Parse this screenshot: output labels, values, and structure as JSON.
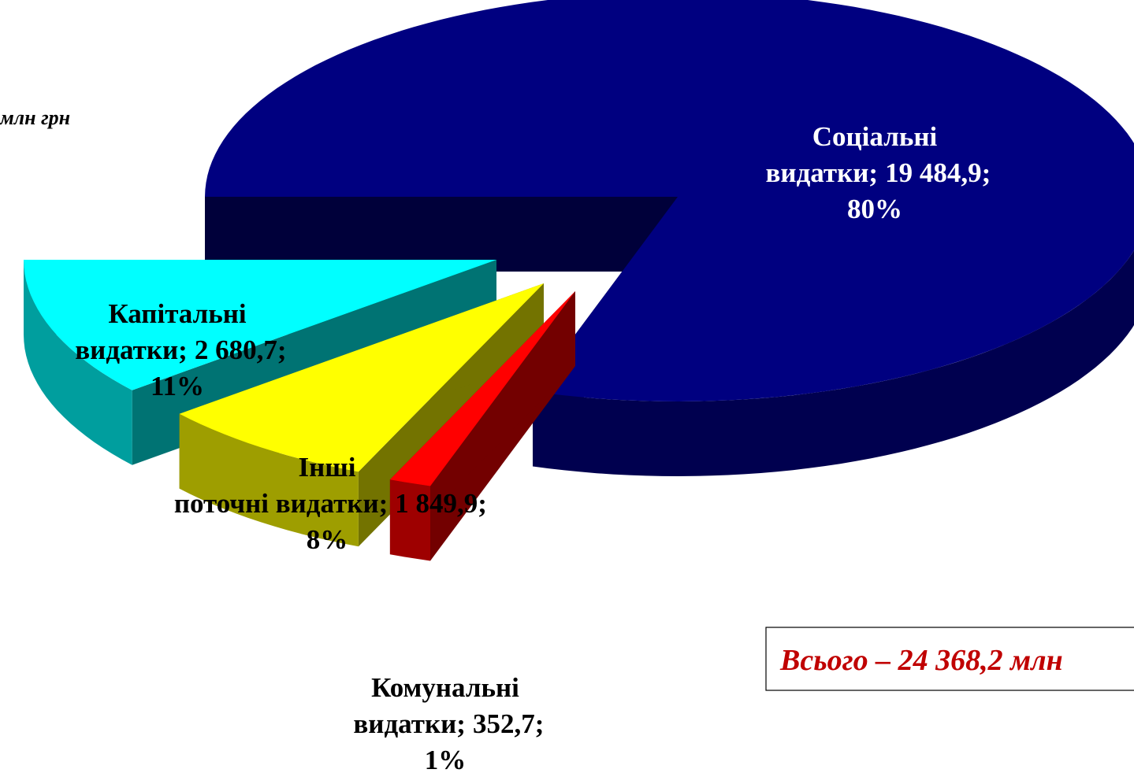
{
  "chart_data": {
    "type": "pie3d",
    "unit_label": "млн грн",
    "total_label": "Всього – 24 368,2 млн",
    "categories": [
      "Соціальні видатки",
      "Капітальні видатки",
      "Інші поточні видатки",
      "Комунальні видатки"
    ],
    "values": [
      19484.9,
      2680.7,
      1849.9,
      352.7
    ],
    "value_labels": [
      "19 484,9",
      "2 680,7",
      "1 849,9",
      "352,7"
    ],
    "percent_labels": [
      "80%",
      "11%",
      "8%",
      "1%"
    ],
    "label_separator": ";",
    "colors": [
      "#000080",
      "#00ffff",
      "#ffff00",
      "#ff0000"
    ]
  }
}
